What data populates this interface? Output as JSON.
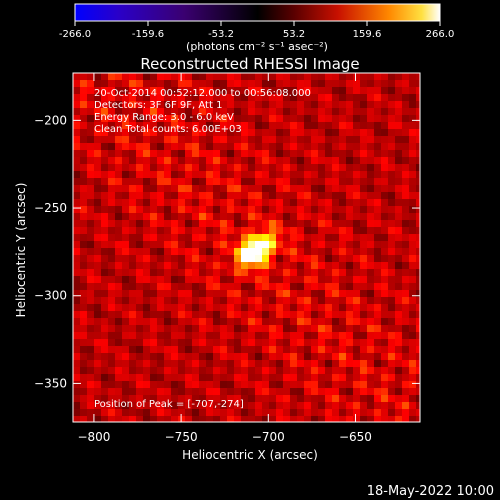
{
  "colorbar": {
    "tick_labels": [
      "-266.0",
      "-159.6",
      "-53.2",
      "53.2",
      "159.6",
      "266.0"
    ],
    "unit_label": "(photons cm⁻² s⁻¹ asec⁻²)",
    "min": -266.0,
    "max": 266.0
  },
  "chart_data": {
    "type": "heatmap",
    "title": "Reconstructed RHESSI Image",
    "xlabel": "Heliocentric X (arcsec)",
    "ylabel": "Heliocentric Y (arcsec)",
    "xlim": [
      -812,
      -613
    ],
    "ylim": [
      -372,
      -173
    ],
    "x_ticks": [
      -800,
      -750,
      -700,
      -650
    ],
    "y_ticks": [
      -200,
      -250,
      -300,
      -350
    ],
    "x_tick_labels": [
      "−800",
      "−750",
      "−700",
      "−650"
    ],
    "y_tick_labels": [
      "−200",
      "−250",
      "−300",
      "−350"
    ],
    "colormap": "heat (black-red-yellow-white)",
    "peak_position": [
      -707,
      -274
    ],
    "peak_value": 266.0,
    "annotations": [
      "20-Oct-2014 00:52:12.000 to 00:56:08.000",
      "Detectors: 3F 6F 9F, Att 1",
      "Energy Range: 3.0 - 6.0 keV",
      "Clean    Total counts: 6.00E+03"
    ],
    "peak_label": "Position of Peak = [-707,-274]"
  },
  "footer": {
    "timestamp": "18-May-2022 10:00"
  }
}
